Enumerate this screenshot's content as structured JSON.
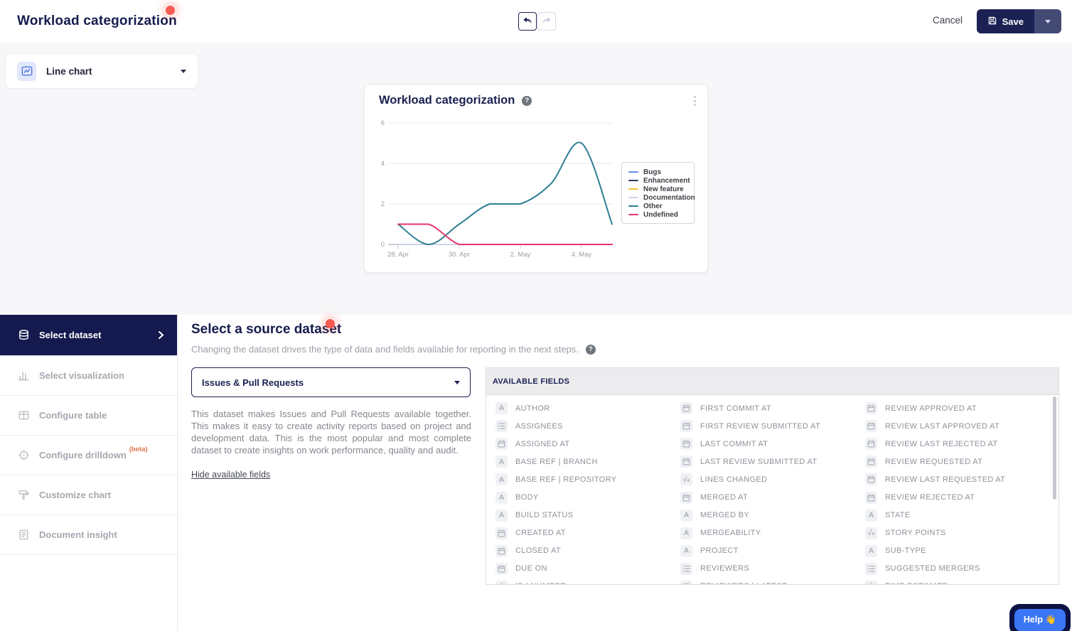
{
  "header": {
    "title": "Workload categorization",
    "cancel_label": "Cancel",
    "save_label": "Save"
  },
  "chart_type_selector": {
    "label": "Line chart"
  },
  "chart_data": {
    "type": "line",
    "title": "Workload categorization",
    "x": [
      "28. Apr",
      "29. Apr",
      "30. Apr",
      "1. May",
      "2. May",
      "3. May",
      "4. May",
      "5. May"
    ],
    "x_tick_labels": [
      "28. Apr",
      "30. Apr",
      "2. May",
      "4. May"
    ],
    "x_tick_positions": [
      0,
      2,
      4,
      6
    ],
    "ylim": [
      0,
      6
    ],
    "y_ticks": [
      0,
      2,
      4,
      6
    ],
    "grid": true,
    "legend_position": "right",
    "series": [
      {
        "name": "Bugs",
        "color": "#5c8ff0",
        "values": [
          0,
          0,
          0,
          0,
          0,
          0,
          0,
          0
        ]
      },
      {
        "name": "Enhancement",
        "color": "#2e3a64",
        "values": [
          0,
          0,
          0,
          0,
          0,
          0,
          0,
          0
        ]
      },
      {
        "name": "New feature",
        "color": "#f2c12e",
        "values": [
          0,
          0,
          0,
          0,
          0,
          0,
          0,
          0
        ]
      },
      {
        "name": "Documentation",
        "color": "#ccd3ee",
        "values": [
          0,
          0,
          0,
          0,
          0,
          0,
          0,
          0
        ]
      },
      {
        "name": "Other",
        "color": "#2e7f93",
        "values": [
          1,
          0,
          1,
          2,
          2,
          3,
          5,
          1
        ]
      },
      {
        "name": "Undefined",
        "color": "#e8356d",
        "values": [
          1,
          1,
          0,
          0,
          0,
          0,
          0,
          0
        ]
      }
    ]
  },
  "sidebar": {
    "items": [
      {
        "label": "Select dataset",
        "active": true
      },
      {
        "label": "Select visualization"
      },
      {
        "label": "Configure table"
      },
      {
        "label": "Configure drilldown",
        "badge": "(beta)"
      },
      {
        "label": "Customize chart"
      },
      {
        "label": "Document insight"
      }
    ]
  },
  "main": {
    "heading": "Select a source dataset",
    "subheading": "Changing the dataset drives the type of data and fields available for reporting in the next steps.",
    "dataset_select_value": "Issues & Pull Requests",
    "description": "This dataset makes Issues and Pull Requests available together. This makes it easy to create activity reports based on project and development data. This is the most popular and most complete dataset to create insights on work performance, quality and audit.",
    "toggle_fields_link": "Hide available fields",
    "fields_panel": {
      "header": "AVAILABLE FIELDS",
      "columns": [
        [
          {
            "icon": "text",
            "label": "AUTHOR"
          },
          {
            "icon": "list",
            "label": "ASSIGNEES"
          },
          {
            "icon": "calendar",
            "label": "ASSIGNED AT"
          },
          {
            "icon": "text",
            "label": "BASE REF | BRANCH"
          },
          {
            "icon": "text",
            "label": "BASE REF | REPOSITORY"
          },
          {
            "icon": "text",
            "label": "BODY"
          },
          {
            "icon": "text",
            "label": "BUILD STATUS"
          },
          {
            "icon": "calendar",
            "label": "CREATED AT"
          },
          {
            "icon": "calendar",
            "label": "CLOSED AT"
          },
          {
            "icon": "calendar",
            "label": "DUE ON"
          },
          {
            "icon": "text",
            "label": "ID | NUMBER",
            "clipped": true
          }
        ],
        [
          {
            "icon": "calendar",
            "label": "FIRST COMMIT AT"
          },
          {
            "icon": "calendar",
            "label": "FIRST REVIEW SUBMITTED AT"
          },
          {
            "icon": "calendar",
            "label": "LAST COMMIT AT"
          },
          {
            "icon": "calendar",
            "label": "LAST REVIEW SUBMITTED AT"
          },
          {
            "icon": "number",
            "label": "LINES CHANGED"
          },
          {
            "icon": "calendar",
            "label": "MERGED AT"
          },
          {
            "icon": "text",
            "label": "MERGED BY"
          },
          {
            "icon": "text",
            "label": "MERGEABILITY"
          },
          {
            "icon": "text",
            "label": "PROJECT"
          },
          {
            "icon": "list",
            "label": "REVIEWERS"
          },
          {
            "icon": "list",
            "label": "REVIEWERS | LATEST",
            "clipped": true
          }
        ],
        [
          {
            "icon": "calendar",
            "label": "REVIEW APPROVED AT"
          },
          {
            "icon": "calendar",
            "label": "REVIEW LAST APPROVED AT"
          },
          {
            "icon": "calendar",
            "label": "REVIEW LAST REJECTED AT"
          },
          {
            "icon": "calendar",
            "label": "REVIEW REQUESTED AT"
          },
          {
            "icon": "calendar",
            "label": "REVIEW LAST REQUESTED AT"
          },
          {
            "icon": "calendar",
            "label": "REVIEW REJECTED AT"
          },
          {
            "icon": "text",
            "label": "STATE"
          },
          {
            "icon": "number",
            "label": "STORY POINTS"
          },
          {
            "icon": "text",
            "label": "SUB-TYPE"
          },
          {
            "icon": "list",
            "label": "SUGGESTED MERGERS"
          },
          {
            "icon": "number",
            "label": "TIME ESTIMATE",
            "clipped": true
          }
        ]
      ]
    }
  },
  "help_button": {
    "label": "Help 👋"
  }
}
